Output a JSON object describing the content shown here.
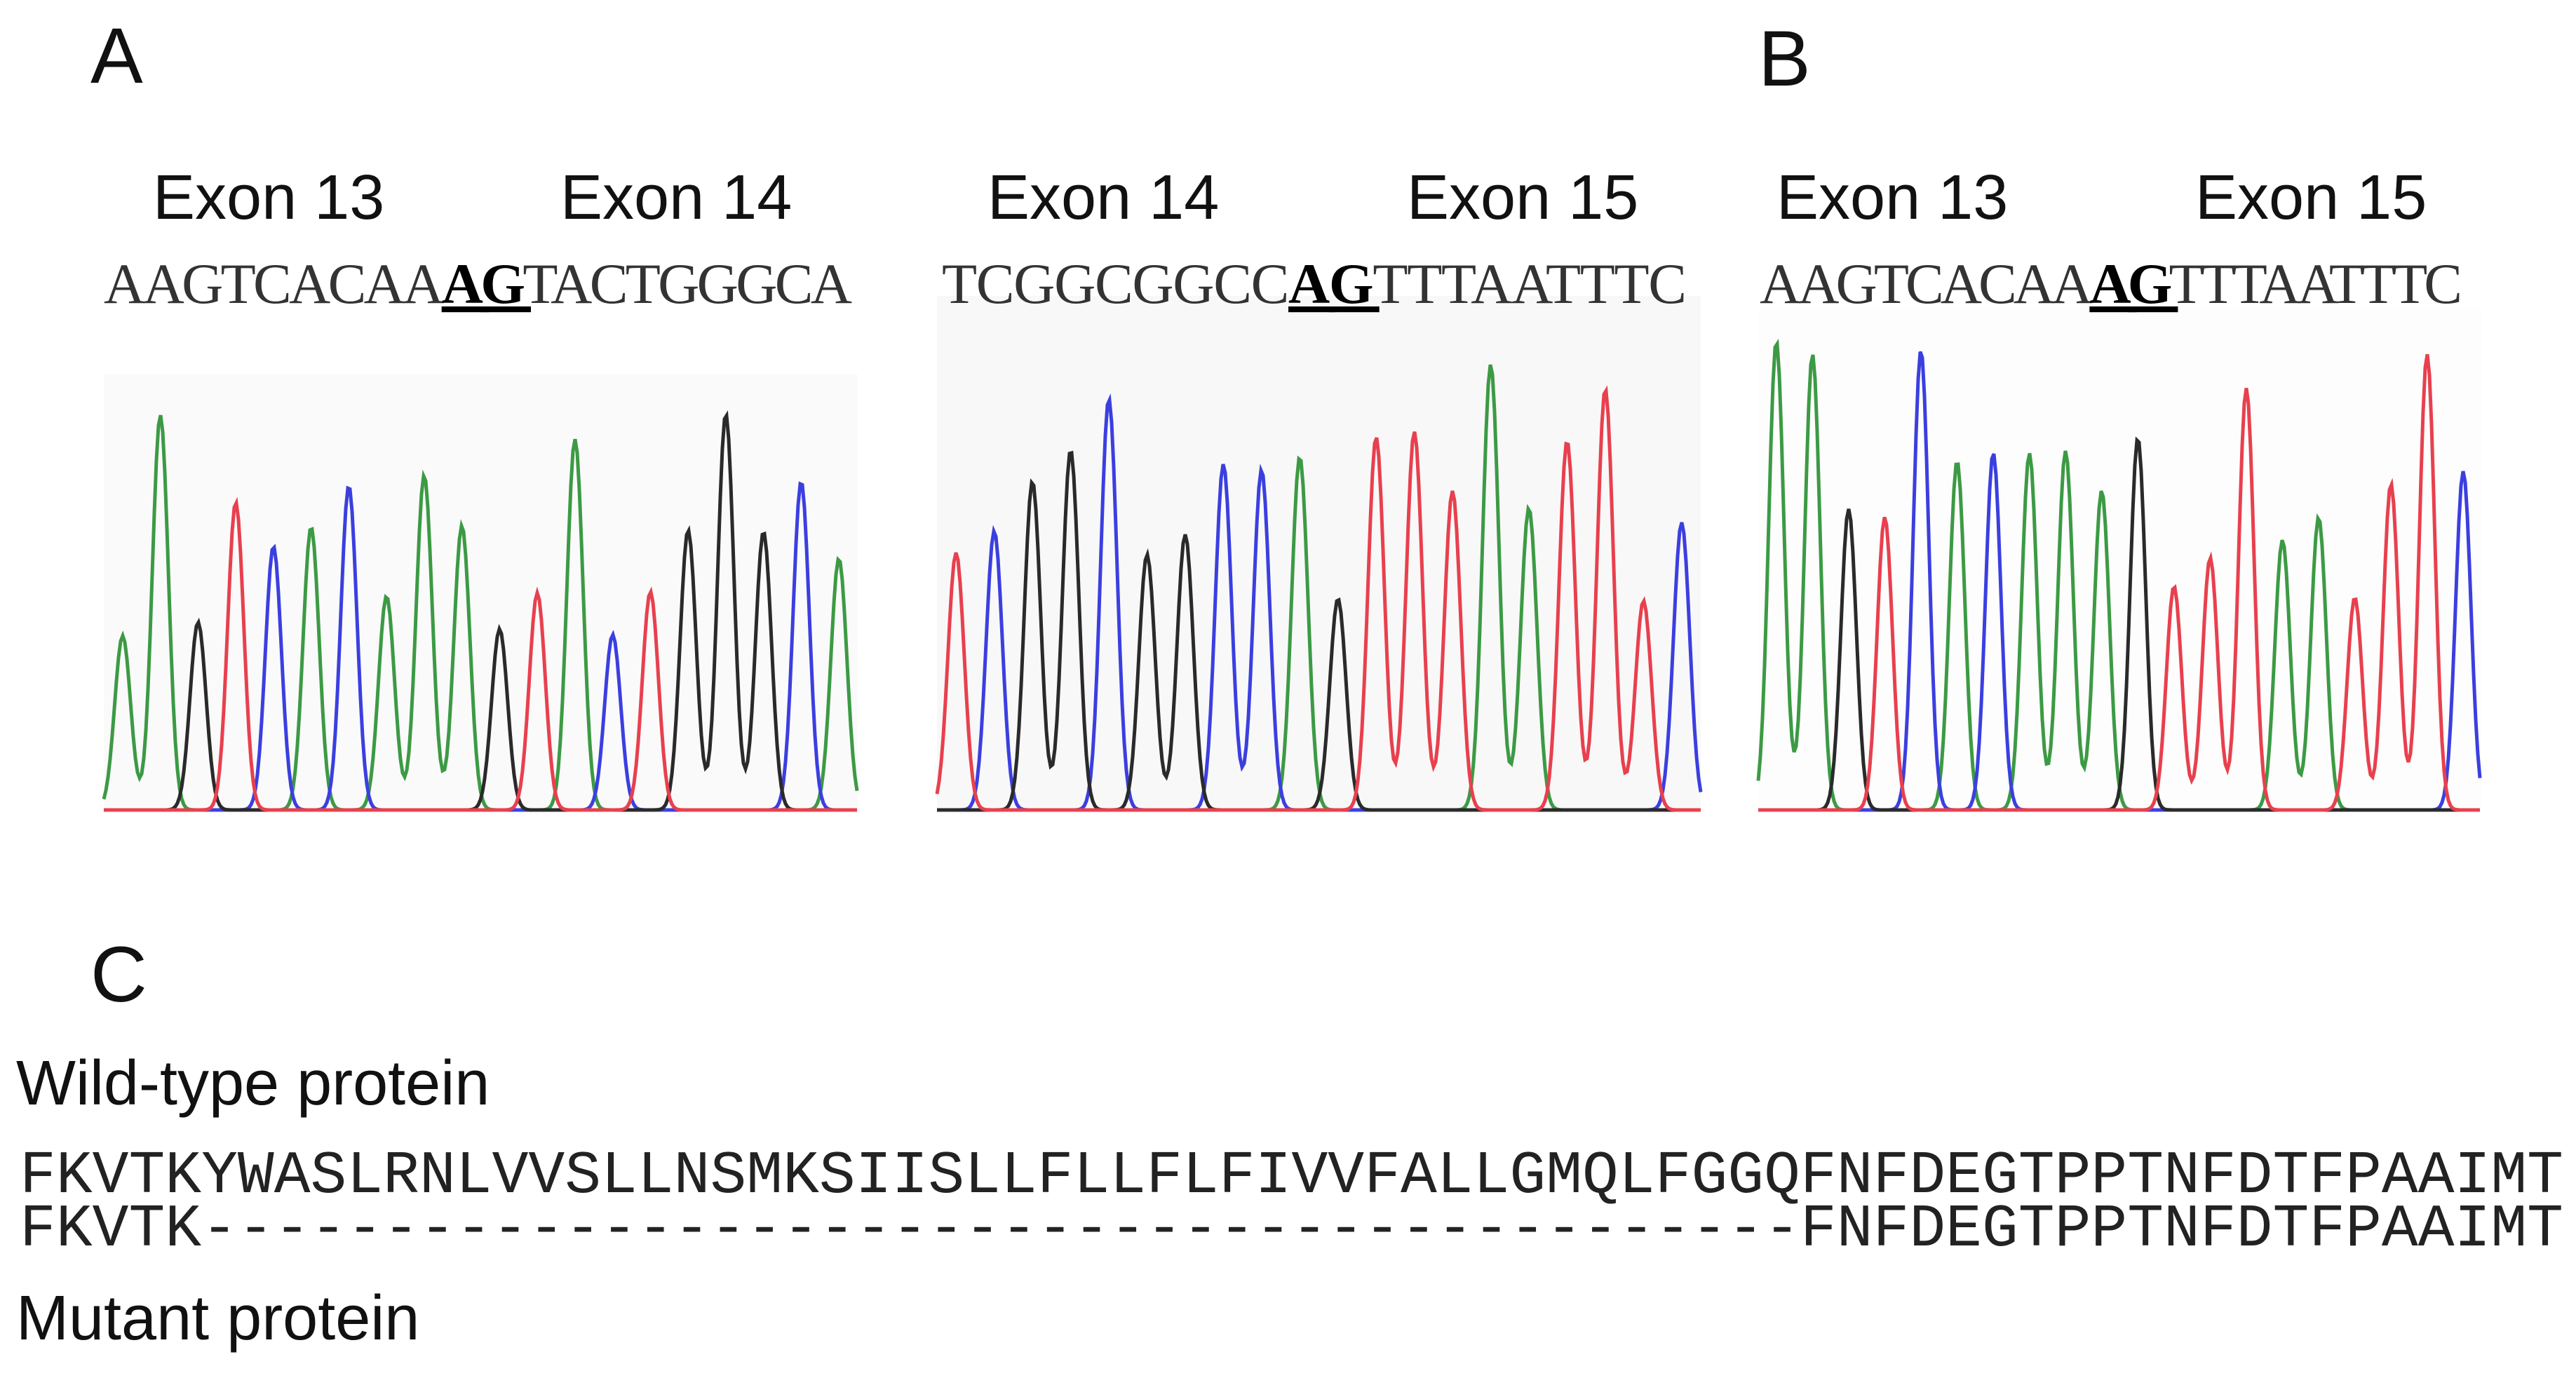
{
  "panels": [
    {
      "label": "A",
      "exons": [
        "Exon 13",
        "Exon 14"
      ],
      "sequence": {
        "before": "AAGTCACAA",
        "splice": "AG",
        "after": "TACTGGGCA"
      }
    },
    {
      "exons": [
        "Exon 14",
        "Exon 15"
      ],
      "sequence": {
        "before": "TCGGCGGCC",
        "splice": "AG",
        "after": "TTTAATTTC"
      }
    },
    {
      "label": "B",
      "exons": [
        "Exon 13",
        "Exon 15"
      ],
      "sequence": {
        "before": "AAGTCACAA",
        "splice": "AG",
        "after": "TTTAATTTC"
      }
    }
  ],
  "protein": {
    "label": "C",
    "wild_type_label": "Wild-type protein",
    "wild_type": "FKVTKYWASLRNLVVSLLNSMKSIISLLFLLFLFIVVFALLGMQLFGGQFNFDEGTPPTNFDTFPAAIMT",
    "mutant": "FKVTK--------------------------------------------FNFDEGTPPTNFDTFPAAIMT",
    "mutant_label": "Mutant protein"
  }
}
